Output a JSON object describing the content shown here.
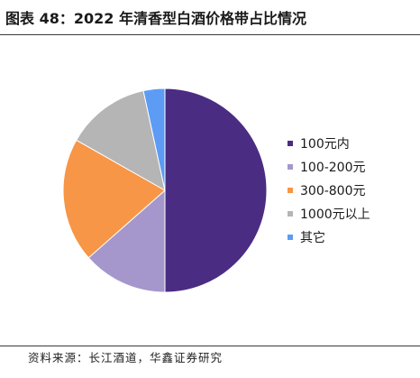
{
  "source": {
    "text": "资料来源：长江酒道，华鑫证券研究"
  },
  "chart_data": {
    "type": "pie",
    "title": "图表 48：2022 年清香型白酒价格带占比情况",
    "categories": [
      "100元内",
      "100-200元",
      "300-800元",
      "1000元以上",
      "其它"
    ],
    "values": [
      50.0,
      13.5,
      19.7,
      13.4,
      3.4
    ],
    "colors": [
      "#4a2c82",
      "#a597cc",
      "#f79646",
      "#b5b5b5",
      "#5c9cf5"
    ],
    "legend_position": "right",
    "data_labels": false
  }
}
